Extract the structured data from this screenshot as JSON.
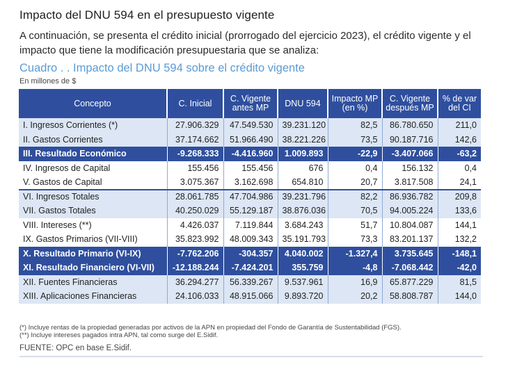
{
  "title": "Impacto del DNU 594 en el presupuesto vigente",
  "intro": "A continuación, se presenta el crédito inicial (prorrogado del ejercicio 2023), el crédito vigente y el impacto que tiene la modificación presupuestaria que se analiza:",
  "cuadro_title": "Cuadro . . Impacto del DNU 594 sobre el crédito vigente",
  "units": "En millones de $",
  "headers": [
    "Concepto",
    "C. Inicial",
    "C. Vigente antes MP",
    "DNU 594",
    "Impacto MP (en %)",
    "C. Vigente después MP",
    "% de var del CI"
  ],
  "rows": [
    [
      "I. Ingresos Corrientes (*)",
      "27.906.329",
      "47.549.530",
      "39.231.120",
      "82,5",
      "86.780.650",
      "211,0"
    ],
    [
      "II. Gastos Corrientes",
      "37.174.662",
      "51.966.490",
      "38.221.226",
      "73,5",
      "90.187.716",
      "142,6"
    ],
    [
      "III. Resultado Económico",
      "-9.268.333",
      "-4.416.960",
      "1.009.893",
      "-22,9",
      "-3.407.066",
      "-63,2"
    ],
    [
      "IV. Ingresos de Capital",
      "155.456",
      "155.456",
      "676",
      "0,4",
      "156.132",
      "0,4"
    ],
    [
      "V. Gastos de Capital",
      "3.075.367",
      "3.162.698",
      "654.810",
      "20,7",
      "3.817.508",
      "24,1"
    ],
    [
      "VI. Ingresos Totales",
      "28.061.785",
      "47.704.986",
      "39.231.796",
      "82,2",
      "86.936.782",
      "209,8"
    ],
    [
      "VII. Gastos Totales",
      "40.250.029",
      "55.129.187",
      "38.876.036",
      "70,5",
      "94.005.224",
      "133,6"
    ],
    [
      "VIII. Intereses (**)",
      "4.426.037",
      "7.119.844",
      "3.684.243",
      "51,7",
      "10.804.087",
      "144,1"
    ],
    [
      "IX. Gastos Primarios (VII-VIII)",
      "35.823.992",
      "48.009.343",
      "35.191.793",
      "73,3",
      "83.201.137",
      "132,2"
    ],
    [
      "X. Resultado Primario (VI-IX)",
      "-7.762.206",
      "-304.357",
      "4.040.002",
      "-1.327,4",
      "3.735.645",
      "-148,1"
    ],
    [
      "XI. Resultado Financiero (VI-VII)",
      "-12.188.244",
      "-7.424.201",
      "355.759",
      "-4,8",
      "-7.068.442",
      "-42,0"
    ],
    [
      "XII. Fuentes Financieras",
      "36.294.277",
      "56.339.267",
      "9.537.961",
      "16,9",
      "65.877.229",
      "81,5"
    ],
    [
      "XIII. Aplicaciones Financieras",
      "24.106.033",
      "48.915.066",
      "9.893.720",
      "20,2",
      "58.808.787",
      "144,0"
    ]
  ],
  "notes": [
    "(*) Incluye rentas de la propiedad generadas por activos de la APN en propiedad del Fondo de Garantía de Sustentabilidad (FGS).",
    "(**) Incluye intereses pagados intra APN, tal como surge del E.Sidif."
  ],
  "source": "FUENTE: OPC en base E.Sidif.",
  "colors": {
    "header_bg": "#2f4f9e",
    "light_row": "#dce6f4",
    "cuadro_title": "#5b9bd5"
  }
}
